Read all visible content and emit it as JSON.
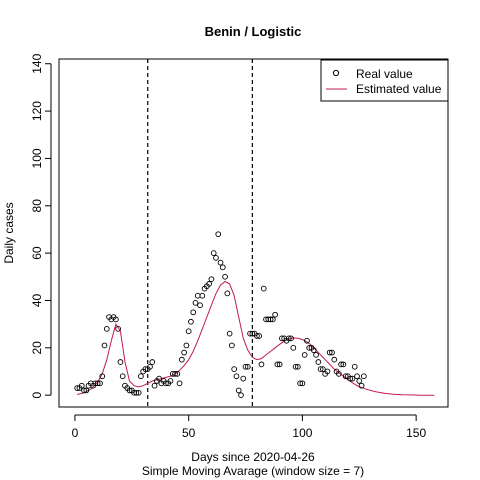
{
  "chart_data": {
    "type": "scatter",
    "title": "Benin / Logistic",
    "xlabel": "Days since 2020-04-26",
    "subtitle": "Simple Moving Avarage (window size = 7)",
    "ylabel": "Daily cases",
    "xlim": [
      -7,
      164
    ],
    "ylim": [
      -5,
      142
    ],
    "x_ticks": [
      0,
      50,
      100,
      150
    ],
    "y_ticks": [
      0,
      20,
      40,
      60,
      80,
      100,
      120,
      140
    ],
    "vlines": [
      32,
      78
    ],
    "legend": {
      "position": "top-right",
      "entries": [
        {
          "label": "Real value",
          "marker": "circle",
          "color": "#000000"
        },
        {
          "label": "Estimated value",
          "marker": "line",
          "color": "#c2185b"
        }
      ]
    },
    "series": [
      {
        "name": "Real value",
        "kind": "points",
        "color": "#000000",
        "x": [
          1,
          2,
          3,
          4,
          5,
          6,
          7,
          8,
          9,
          10,
          11,
          12,
          13,
          14,
          15,
          16,
          17,
          18,
          19,
          20,
          21,
          22,
          23,
          24,
          25,
          26,
          27,
          28,
          29,
          30,
          31,
          32,
          33,
          34,
          35,
          36,
          37,
          38,
          39,
          40,
          41,
          42,
          43,
          44,
          45,
          46,
          47,
          48,
          49,
          50,
          51,
          52,
          53,
          54,
          55,
          56,
          57,
          58,
          59,
          60,
          61,
          62,
          63,
          64,
          65,
          66,
          67,
          68,
          69,
          70,
          71,
          72,
          73,
          74,
          75,
          76,
          77,
          78,
          79,
          80,
          81,
          82,
          83,
          84,
          85,
          86,
          87,
          88,
          89,
          90,
          91,
          92,
          93,
          94,
          95,
          96,
          97,
          98,
          99,
          100,
          101,
          102,
          103,
          104,
          105,
          106,
          107,
          108,
          109,
          110,
          111,
          112,
          113,
          114,
          115,
          116,
          117,
          118,
          119,
          120,
          121,
          122,
          123,
          124,
          125,
          126,
          127
        ],
        "y": [
          3,
          3,
          4,
          2,
          2,
          4,
          5,
          4,
          5,
          5,
          5,
          8,
          21,
          28,
          33,
          32,
          33,
          32,
          28,
          14,
          8,
          4,
          3,
          2,
          2,
          1,
          1,
          1,
          8,
          10,
          11,
          11,
          12,
          14,
          4,
          6,
          7,
          5,
          6,
          5,
          5,
          6,
          9,
          9,
          9,
          5,
          15,
          18,
          21,
          27,
          31,
          35,
          39,
          42,
          38,
          42,
          45,
          46,
          47,
          49,
          60,
          58,
          68,
          56,
          54,
          50,
          43,
          26,
          21,
          11,
          8,
          2,
          0,
          7,
          12,
          12,
          26,
          26,
          26,
          25,
          25,
          13,
          45,
          32,
          32,
          32,
          32,
          34,
          13,
          13,
          24,
          24,
          23,
          24,
          24,
          20,
          12,
          12,
          5,
          5,
          17,
          23,
          20,
          20,
          19,
          17,
          14,
          11,
          11,
          9,
          10,
          18,
          18,
          15,
          10,
          9,
          13,
          13,
          8,
          8,
          7,
          7,
          12,
          8,
          6,
          4,
          8
        ]
      },
      {
        "name": "Estimated value",
        "kind": "line",
        "color": "#c2185b",
        "x": [
          1,
          4,
          7,
          10,
          12,
          14,
          16,
          18,
          20,
          22,
          24,
          26,
          28,
          30,
          32,
          34,
          36,
          38,
          40,
          42,
          44,
          46,
          48,
          50,
          52,
          54,
          56,
          58,
          60,
          62,
          64,
          66,
          68,
          70,
          72,
          74,
          76,
          78,
          80,
          82,
          84,
          86,
          88,
          90,
          92,
          94,
          96,
          98,
          100,
          102,
          104,
          106,
          108,
          110,
          112,
          114,
          116,
          118,
          120,
          124,
          128,
          132,
          136,
          140,
          144,
          148,
          152,
          156,
          158
        ],
        "y": [
          0.3,
          1.0,
          2.5,
          5.5,
          9,
          15,
          23,
          30,
          27,
          14,
          6,
          4,
          3.5,
          4,
          5,
          6,
          6.5,
          7,
          7.5,
          8,
          9,
          10.5,
          12.5,
          15,
          18.5,
          23,
          28,
          33,
          38,
          43,
          46.5,
          48,
          47,
          42,
          33,
          24,
          19,
          16,
          15,
          15.5,
          17,
          18.5,
          20,
          21.5,
          22.8,
          23.8,
          24.2,
          24,
          23.5,
          22.5,
          21,
          19,
          17,
          15,
          13,
          11,
          9.5,
          8,
          6.5,
          4,
          2.5,
          1.5,
          0.8,
          0.4,
          0.2,
          0.1,
          0,
          0,
          0
        ]
      }
    ]
  }
}
